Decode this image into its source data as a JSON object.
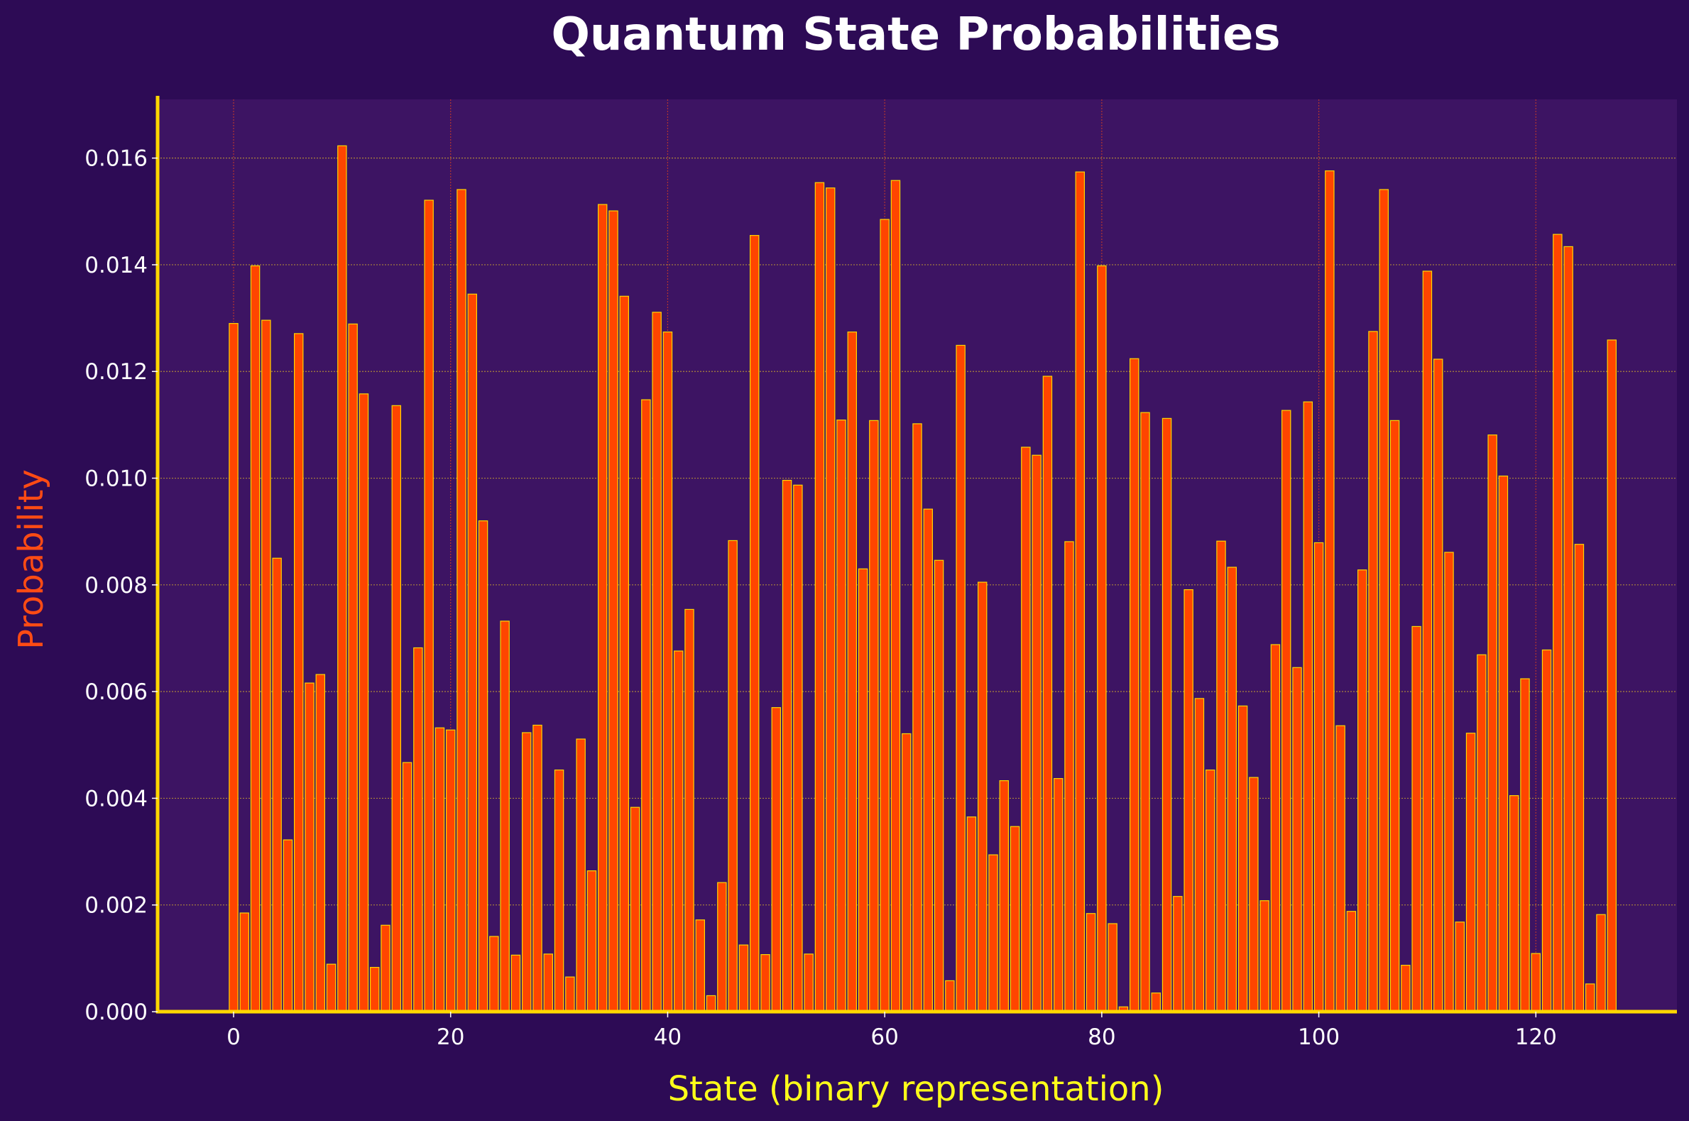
{
  "colors": {
    "background": "#2d0b55",
    "plot_background": "#3d1463",
    "bar_fill": "#ff4500",
    "bar_edge": "#ffd700",
    "x_grid": "#c0392b",
    "y_grid": "#c8a032",
    "spine": "#ffd700",
    "title": "#ffffff",
    "xlabel": "#ffff1a",
    "ylabel": "#ff4b14",
    "tick_labels": "#ffffff"
  },
  "chart_data": {
    "type": "bar",
    "title": "Quantum State Probabilities",
    "xlabel": "State (binary representation)",
    "ylabel": "Probability",
    "xlim": [
      -7,
      133
    ],
    "ylim": [
      0,
      0.0171
    ],
    "x_ticks": [
      0,
      20,
      40,
      60,
      80,
      100,
      120
    ],
    "y_ticks": [
      0.0,
      0.002,
      0.004,
      0.006,
      0.008,
      0.01,
      0.012,
      0.014,
      0.016
    ],
    "x_tick_labels": [
      "0",
      "20",
      "40",
      "60",
      "80",
      "100",
      "120"
    ],
    "y_tick_labels": [
      "0.000",
      "0.002",
      "0.004",
      "0.006",
      "0.008",
      "0.010",
      "0.012",
      "0.014",
      "0.016"
    ],
    "grid": true,
    "categories": [
      0,
      1,
      2,
      3,
      4,
      5,
      6,
      7,
      8,
      9,
      10,
      11,
      12,
      13,
      14,
      15,
      16,
      17,
      18,
      19,
      20,
      21,
      22,
      23,
      24,
      25,
      26,
      27,
      28,
      29,
      30,
      31,
      32,
      33,
      34,
      35,
      36,
      37,
      38,
      39,
      40,
      41,
      42,
      43,
      44,
      45,
      46,
      47,
      48,
      49,
      50,
      51,
      52,
      53,
      54,
      55,
      56,
      57,
      58,
      59,
      60,
      61,
      62,
      63,
      64,
      65,
      66,
      67,
      68,
      69,
      70,
      71,
      72,
      73,
      74,
      75,
      76,
      77,
      78,
      79,
      80,
      81,
      82,
      83,
      84,
      85,
      86,
      87,
      88,
      89,
      90,
      91,
      92,
      93,
      94,
      95,
      96,
      97,
      98,
      99,
      100,
      101,
      102,
      103,
      104,
      105,
      106,
      107,
      108,
      109,
      110,
      111,
      112,
      113,
      114,
      115,
      116,
      117,
      118,
      119,
      120,
      121,
      122,
      123,
      124,
      125,
      126,
      127
    ],
    "values": [
      0.0129,
      0.00185,
      0.01398,
      0.01296,
      0.0085,
      0.00322,
      0.01271,
      0.00616,
      0.00632,
      0.00089,
      0.01623,
      0.01289,
      0.01158,
      0.00083,
      0.00162,
      0.01136,
      0.00467,
      0.00682,
      0.01521,
      0.00532,
      0.00528,
      0.01541,
      0.01345,
      0.0092,
      0.00141,
      0.00732,
      0.00106,
      0.00523,
      0.00537,
      0.00108,
      0.00453,
      0.00065,
      0.00511,
      0.00264,
      0.01513,
      0.01501,
      0.01341,
      0.00383,
      0.01147,
      0.01311,
      0.01274,
      0.00676,
      0.00754,
      0.00172,
      0.0003,
      0.00242,
      0.00883,
      0.00125,
      0.01455,
      0.00107,
      0.0057,
      0.00996,
      0.00987,
      0.00108,
      0.01554,
      0.01544,
      0.01109,
      0.01274,
      0.0083,
      0.01108,
      0.01485,
      0.01558,
      0.00521,
      0.01102,
      0.00942,
      0.00846,
      0.00058,
      0.01249,
      0.00365,
      0.00805,
      0.00294,
      0.00433,
      0.00347,
      0.01058,
      0.01043,
      0.01191,
      0.00437,
      0.00881,
      0.01574,
      0.00184,
      0.01398,
      0.00165,
      9e-05,
      0.01224,
      0.01123,
      0.00035,
      0.01112,
      0.00216,
      0.00791,
      0.00587,
      0.00453,
      0.00882,
      0.00833,
      0.00573,
      0.00439,
      0.00208,
      0.00688,
      0.01127,
      0.00645,
      0.01143,
      0.00879,
      0.01576,
      0.00536,
      0.00188,
      0.00828,
      0.01275,
      0.01541,
      0.01108,
      0.00087,
      0.00722,
      0.01388,
      0.01223,
      0.00861,
      0.00168,
      0.00522,
      0.00669,
      0.01081,
      0.01004,
      0.00405,
      0.00624,
      0.00109,
      0.00678,
      0.01457,
      0.01434,
      0.00876,
      0.00052,
      0.00182,
      0.01259
    ]
  }
}
